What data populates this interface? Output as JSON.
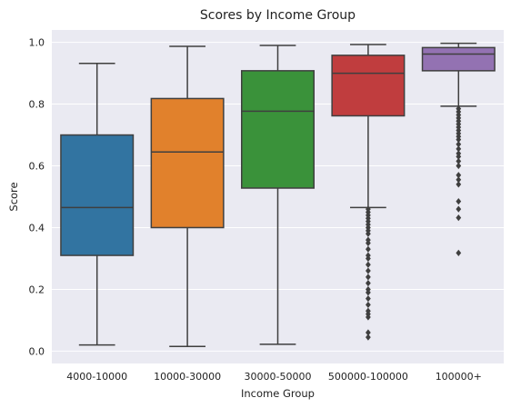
{
  "chart_data": {
    "type": "box",
    "title": "Scores by Income Group",
    "xlabel": "Income Group",
    "ylabel": "Score",
    "ylim": [
      -0.04,
      1.04
    ],
    "yticks": [
      "0.0",
      "0.2",
      "0.4",
      "0.6",
      "0.8",
      "1.0"
    ],
    "grid": true,
    "background": "#eaeaf2",
    "categories": [
      "4000-10000",
      "10000-30000",
      "30000-50000",
      "500000-100000",
      "100000+"
    ],
    "boxes": [
      {
        "category": "4000-10000",
        "color": "#3274a1",
        "whisker_low": 0.02,
        "q1": 0.31,
        "median": 0.465,
        "q3": 0.7,
        "whisker_high": 0.932,
        "outliers": []
      },
      {
        "category": "10000-30000",
        "color": "#e1812c",
        "whisker_low": 0.015,
        "q1": 0.4,
        "median": 0.645,
        "q3": 0.818,
        "whisker_high": 0.987,
        "outliers": []
      },
      {
        "category": "30000-50000",
        "color": "#3a923a",
        "whisker_low": 0.022,
        "q1": 0.528,
        "median": 0.777,
        "q3": 0.908,
        "whisker_high": 0.99,
        "outliers": []
      },
      {
        "category": "500000-100000",
        "color": "#c03d3e",
        "whisker_low": 0.465,
        "q1": 0.762,
        "median": 0.9,
        "q3": 0.958,
        "whisker_high": 0.993,
        "outliers": [
          0.045,
          0.06,
          0.11,
          0.12,
          0.13,
          0.15,
          0.17,
          0.19,
          0.2,
          0.22,
          0.24,
          0.26,
          0.28,
          0.3,
          0.31,
          0.33,
          0.35,
          0.36,
          0.38,
          0.39,
          0.4,
          0.41,
          0.42,
          0.43,
          0.44,
          0.45,
          0.46
        ]
      },
      {
        "category": "100000+",
        "color": "#9372b2",
        "whisker_low": 0.793,
        "q1": 0.908,
        "median": 0.962,
        "q3": 0.983,
        "whisker_high": 0.997,
        "outliers": [
          0.318,
          0.432,
          0.46,
          0.485,
          0.54,
          0.555,
          0.57,
          0.6,
          0.615,
          0.63,
          0.64,
          0.655,
          0.67,
          0.685,
          0.695,
          0.705,
          0.715,
          0.725,
          0.735,
          0.745,
          0.755,
          0.765,
          0.775,
          0.785
        ]
      }
    ]
  }
}
